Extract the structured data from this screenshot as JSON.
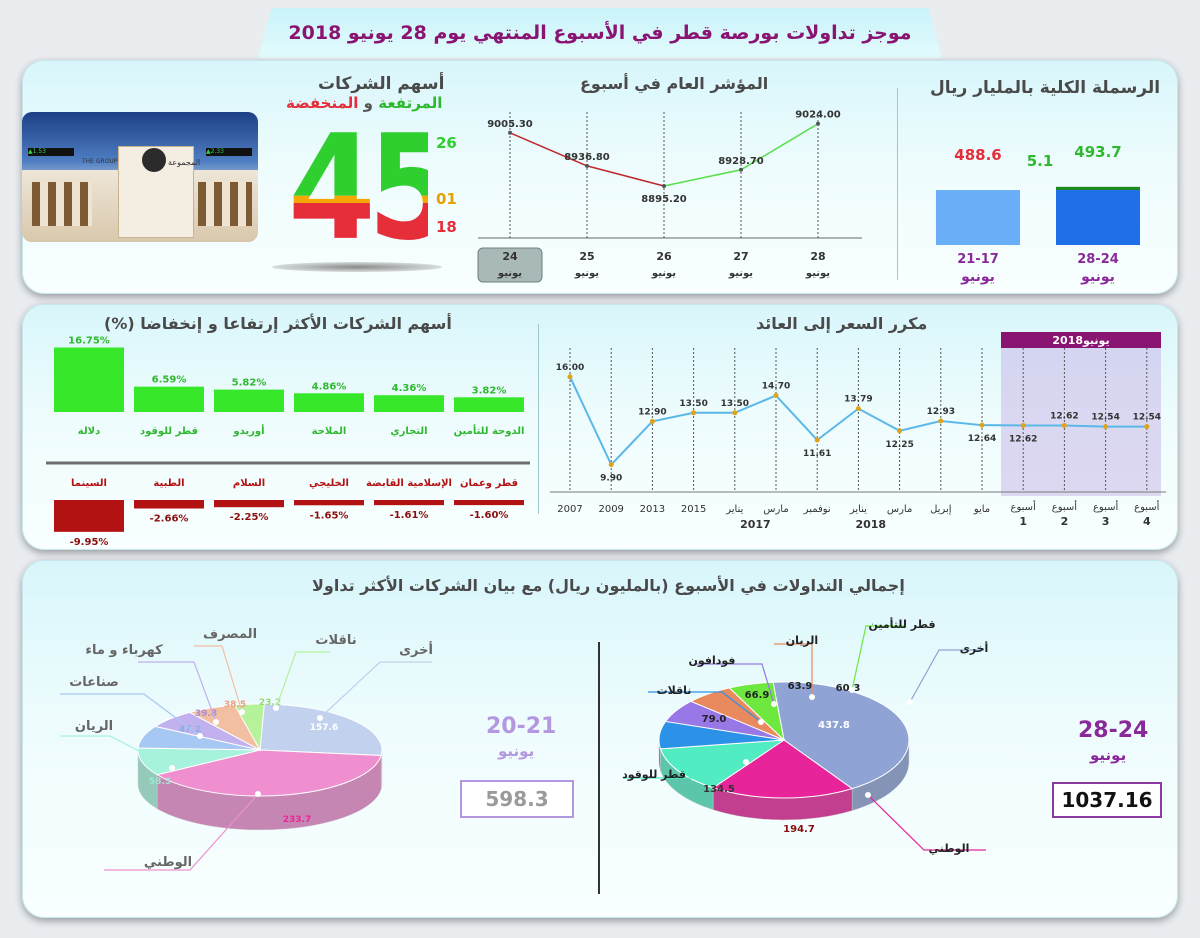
{
  "header": {
    "title": "موجز تداولات بورصة قطر في الأسبوع المنتهي يوم 28 يونيو 2018"
  },
  "companies": {
    "title": "أسهم الشركات",
    "subtitle_rising": "المرتفعة",
    "subtitle_and": " و ",
    "subtitle_falling": "المنخفضة",
    "total": "45",
    "rising": "26",
    "unchanged": "01",
    "falling": "18",
    "colors": {
      "rising": "#2fcf2f",
      "unchanged": "#f5a800",
      "falling": "#e62d3a"
    }
  },
  "photo": {
    "sign_left": "▲1.53",
    "sign_right": "▲2.33",
    "building_en": "THE GROUP",
    "building_ar": "المجموعة"
  },
  "chart_data": [
    {
      "type": "line",
      "title": "المؤشر العام في أسبوع",
      "categories": [
        "24",
        "25",
        "26",
        "27",
        "28"
      ],
      "category_sub": "يونيو",
      "values": [
        9005.3,
        8936.8,
        8895.2,
        8928.7,
        9024.0
      ],
      "labels": [
        "9005.30",
        "8936.80",
        "8895.20",
        "8928.70",
        "9024.00"
      ],
      "colors": {
        "down": "#c0272d",
        "up": "#55e04a"
      },
      "highlight_category": "24"
    },
    {
      "type": "bar",
      "title": "الرسملة الكلية بالمليار ريال",
      "categories": [
        "21-17",
        "28-24"
      ],
      "category_sub": "يونيو",
      "values": [
        488.6,
        493.7
      ],
      "value_labels": [
        "488.6",
        "493.7"
      ],
      "difference": "5.1",
      "colors": [
        "#6aaef7",
        "#1f6fe8"
      ]
    },
    {
      "type": "bar",
      "title": "أسهم الشركات الأكثر إرتفاعا و إنخفاضا  (%)",
      "rising": {
        "categories": [
          "دلالة",
          "قطر للوقود",
          "أوريدو",
          "الملاحة",
          "التجاري",
          "الدوحة للتأمين"
        ],
        "values": [
          16.75,
          6.59,
          5.82,
          4.86,
          4.36,
          3.82
        ],
        "labels": [
          "16.75%",
          "6.59%",
          "5.82%",
          "4.86%",
          "4.36%",
          "3.82%"
        ],
        "color": "#37e82a"
      },
      "falling": {
        "categories": [
          "السينما",
          "الطبية",
          "السلام",
          "الخليجي",
          "الإسلامية القابضة",
          "قطر وعمان"
        ],
        "values": [
          -9.95,
          -2.66,
          -2.25,
          -1.65,
          -1.61,
          -1.6
        ],
        "labels": [
          "-9.95%",
          "-2.66%",
          "-2.25%",
          "-1.65%",
          "-1.61%",
          "-1.60%"
        ],
        "color": "#b31212"
      }
    },
    {
      "type": "line",
      "title": "مكرر السعر إلى العائد",
      "categories": [
        "2007",
        "2009",
        "2013",
        "2015",
        "يناير",
        "مارس",
        "نوفمبر",
        "يناير",
        "مارس",
        "إبريل",
        "مايو",
        "أسبوع 1",
        "أسبوع 2",
        "أسبوع 3",
        "أسبوع 4"
      ],
      "values": [
        16.0,
        9.9,
        12.9,
        13.5,
        13.5,
        14.7,
        11.61,
        13.79,
        12.25,
        12.93,
        12.64,
        12.62,
        12.62,
        12.54,
        12.54
      ],
      "labels": [
        "16.00",
        "9.90",
        "12.90",
        "13.50",
        "13.50",
        "14.70",
        "11.61",
        "13.79",
        "12.25",
        "12.93",
        "12.64",
        "12.62",
        "12.62",
        "12.54",
        "12.54"
      ],
      "year_labels": [
        {
          "label": "2017"
        },
        {
          "label": "2018"
        }
      ],
      "highlight_label": "يونيو2018",
      "colors": {
        "line": "#5ab8e8",
        "marker": "#e0a21b"
      }
    },
    {
      "type": "pie",
      "title": "إجمالي التداولات في الأسبوع (بالمليون ريال) مع  بيان الشركات الأكثر تداولا",
      "period": "28-24",
      "period_sub": "يونيو",
      "total": "1037.16",
      "slices": [
        {
          "name": "أخرى",
          "value": 437.8,
          "label": "437.8",
          "color": "#8fa3d4"
        },
        {
          "name": "الوطني",
          "value": 194.7,
          "label": "194.7",
          "color": "#e8249a"
        },
        {
          "name": "قطر للوقود",
          "value": 134.5,
          "label": "134.5",
          "color": "#52ecc3"
        },
        {
          "name": "ناقلات",
          "value": 79.0,
          "label": "79.0",
          "color": "#2c92e8"
        },
        {
          "name": "فودافون",
          "value": 66.9,
          "label": "66.9",
          "color": "#9877e6"
        },
        {
          "name": "الريان",
          "value": 63.9,
          "label": "63.9",
          "color": "#e88a5e"
        },
        {
          "name": "قطر للتأمين",
          "value": 60.3,
          "label": "60.3",
          "color": "#6ee83e"
        }
      ]
    },
    {
      "type": "pie",
      "period": "20-21",
      "period_sub": "يونيو",
      "total": "598.3",
      "slices": [
        {
          "name": "أخرى",
          "value": 157.6,
          "label": "157.6",
          "color": "#c2d2ee"
        },
        {
          "name": "الوطني",
          "value": 233.7,
          "label": "233.7",
          "color": "#ef8fd0"
        },
        {
          "name": "الريان",
          "value": 58.3,
          "label": "58.3",
          "color": "#a6f2dc"
        },
        {
          "name": "صناعات",
          "value": 47.2,
          "label": "47.2",
          "color": "#a7c8f2"
        },
        {
          "name": "كهرباء و ماء",
          "value": 39.8,
          "label": "39.8",
          "color": "#c1b1ef"
        },
        {
          "name": "المصرف",
          "value": 38.5,
          "label": "38.5",
          "color": "#f3bfa2"
        },
        {
          "name": "ناقلات",
          "value": 23.2,
          "label": "23.2",
          "color": "#b5f29a"
        }
      ]
    }
  ]
}
